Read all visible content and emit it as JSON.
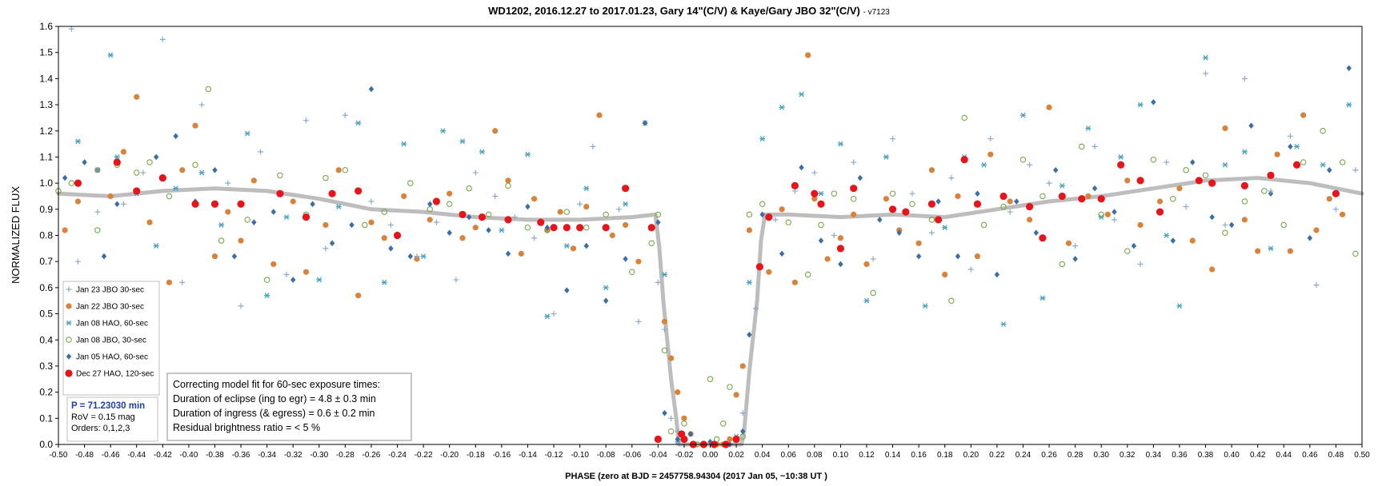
{
  "chart_data": {
    "type": "scatter",
    "title": "WD1202, 2016.12.27 to 2017.01.23, Gary 14\"(C/V) & Kaye/Gary JBO 32\"(C/V)",
    "title_suffix": "- v7123",
    "xlabel": "PHASE (zero  at  BJD = 2457758.94304 (2017 Jan 05, ~10:38 UT )",
    "ylabel": "NORMALIZED FLUX",
    "xlim": [
      -0.5,
      0.5
    ],
    "ylim": [
      0.0,
      1.6
    ],
    "x_ticks": [
      "-0.50",
      "-0.48",
      "-0.46",
      "-0.44",
      "-0.42",
      "-0.40",
      "-0.38",
      "-0.36",
      "-0.34",
      "-0.32",
      "-0.30",
      "-0.28",
      "-0.26",
      "-0.24",
      "-0.22",
      "-0.20",
      "-0.18",
      "-0.16",
      "-0.14",
      "-0.12",
      "-0.10",
      "-0.08",
      "-0.06",
      "-0.04",
      "-0.02",
      "0.00",
      "0.02",
      "0.04",
      "0.06",
      "0.08",
      "0.10",
      "0.12",
      "0.14",
      "0.16",
      "0.18",
      "0.20",
      "0.22",
      "0.24",
      "0.26",
      "0.28",
      "0.30",
      "0.32",
      "0.34",
      "0.36",
      "0.38",
      "0.40",
      "0.42",
      "0.44",
      "0.46",
      "0.48",
      "0.50"
    ],
    "y_ticks": [
      "0.0",
      "0.1",
      "0.2",
      "0.3",
      "0.4",
      "0.5",
      "0.6",
      "0.7",
      "0.8",
      "0.9",
      "1.0",
      "1.1",
      "1.2",
      "1.3",
      "1.4",
      "1.5",
      "1.6"
    ],
    "grid": false,
    "legend_position": "left",
    "legend": [
      {
        "label": "Jan 23 JBO 30-sec",
        "marker": "plus",
        "color": "#8ea9c8"
      },
      {
        "label": "Jan 22 JBO 30-sec",
        "marker": "circle",
        "color": "#d9823b"
      },
      {
        "label": "Jan 08 HAO, 60-sec",
        "marker": "asterisk",
        "color": "#4aa3bf"
      },
      {
        "label": "Jan 08 JBO, 30-sec",
        "marker": "open-circle",
        "color": "#77a84a"
      },
      {
        "label": "Jan 05 HAO, 60-sec",
        "marker": "diamond",
        "color": "#3a6ea5"
      },
      {
        "label": "Dec 27 HAO, 120-sec",
        "marker": "big-circle",
        "color": "#e8141b"
      }
    ],
    "series": [
      {
        "name": "Dec 27 HAO, 120-sec",
        "marker": "big-circle",
        "color": "#e8141b",
        "x": [
          -0.485,
          -0.455,
          -0.44,
          -0.42,
          -0.395,
          -0.38,
          -0.36,
          -0.33,
          -0.31,
          -0.29,
          -0.27,
          -0.24,
          -0.21,
          -0.19,
          -0.175,
          -0.155,
          -0.13,
          -0.12,
          -0.11,
          -0.1,
          -0.08,
          -0.065,
          -0.045,
          -0.04,
          -0.022,
          -0.02,
          -0.013,
          -0.005,
          0.003,
          0.012,
          0.02,
          0.038,
          0.045,
          0.065,
          0.08,
          0.085,
          0.1,
          0.11,
          0.14,
          0.15,
          0.17,
          0.175,
          0.195,
          0.205,
          0.225,
          0.245,
          0.255,
          0.27,
          0.285,
          0.3,
          0.315,
          0.33,
          0.345,
          0.375,
          0.385,
          0.41,
          0.43,
          0.45,
          0.48
        ],
        "y": [
          1.0,
          1.08,
          0.97,
          1.02,
          0.92,
          0.92,
          0.92,
          0.96,
          0.87,
          0.96,
          0.97,
          0.8,
          0.93,
          0.88,
          0.87,
          0.86,
          0.85,
          0.83,
          0.83,
          0.83,
          0.83,
          0.98,
          0.83,
          0.02,
          0.04,
          0.02,
          0.0,
          0.0,
          0.0,
          0.0,
          0.02,
          0.68,
          0.87,
          0.99,
          0.96,
          0.92,
          0.75,
          0.98,
          0.9,
          0.89,
          0.92,
          0.86,
          1.09,
          0.92,
          0.95,
          0.91,
          0.79,
          0.95,
          0.94,
          0.94,
          1.07,
          1.01,
          0.89,
          1.01,
          1.0,
          0.99,
          1.03,
          1.07,
          0.96
        ]
      },
      {
        "name": "Jan 22 JBO 30-sec",
        "marker": "circle",
        "color": "#d9823b",
        "x": [
          -0.495,
          -0.485,
          -0.47,
          -0.46,
          -0.45,
          -0.44,
          -0.43,
          -0.415,
          -0.405,
          -0.395,
          -0.38,
          -0.37,
          -0.36,
          -0.35,
          -0.335,
          -0.32,
          -0.31,
          -0.295,
          -0.285,
          -0.27,
          -0.26,
          -0.25,
          -0.235,
          -0.225,
          -0.215,
          -0.2,
          -0.19,
          -0.18,
          -0.165,
          -0.155,
          -0.145,
          -0.135,
          -0.125,
          -0.115,
          -0.105,
          -0.095,
          -0.085,
          -0.075,
          -0.065,
          -0.055,
          -0.045,
          -0.035,
          -0.03,
          -0.025,
          -0.02,
          -0.015,
          0.005,
          0.01,
          0.015,
          0.02,
          0.025,
          0.03,
          0.045,
          0.055,
          0.065,
          0.075,
          0.08,
          0.09,
          0.1,
          0.11,
          0.12,
          0.135,
          0.145,
          0.16,
          0.17,
          0.18,
          0.19,
          0.205,
          0.215,
          0.23,
          0.245,
          0.26,
          0.275,
          0.29,
          0.305,
          0.32,
          0.33,
          0.345,
          0.36,
          0.37,
          0.385,
          0.395,
          0.41,
          0.42,
          0.435,
          0.445,
          0.455,
          0.465,
          0.475,
          0.485
        ],
        "y": [
          0.82,
          0.93,
          1.05,
          0.95,
          1.12,
          1.33,
          0.85,
          0.62,
          1.05,
          1.22,
          0.72,
          0.89,
          0.78,
          1.01,
          0.69,
          0.93,
          0.66,
          0.84,
          1.05,
          0.57,
          0.85,
          0.79,
          0.95,
          0.71,
          0.86,
          0.96,
          0.79,
          0.83,
          1.2,
          1.01,
          0.73,
          0.94,
          0.82,
          0.89,
          0.75,
          0.91,
          1.26,
          0.8,
          0.84,
          0.7,
          0.83,
          0.47,
          0.33,
          0.2,
          0.1,
          0.04,
          0.0,
          0.0,
          0.02,
          0.19,
          0.3,
          0.82,
          0.66,
          0.9,
          0.62,
          1.49,
          0.94,
          0.71,
          0.79,
          0.88,
          0.69,
          0.94,
          0.82,
          0.77,
          1.05,
          0.65,
          0.95,
          0.72,
          1.11,
          0.93,
          0.86,
          1.29,
          0.77,
          0.95,
          0.88,
          1.01,
          0.84,
          0.93,
          0.98,
          0.78,
          0.67,
          1.21,
          0.86,
          0.74,
          1.11,
          0.74,
          1.26,
          0.82,
          0.94,
          0.88
        ]
      },
      {
        "name": "Jan 08 HAO, 60-sec",
        "marker": "asterisk",
        "color": "#4aa3bf",
        "x": [
          -0.485,
          -0.47,
          -0.46,
          -0.455,
          -0.44,
          -0.425,
          -0.41,
          -0.39,
          -0.375,
          -0.355,
          -0.34,
          -0.325,
          -0.3,
          -0.285,
          -0.27,
          -0.25,
          -0.235,
          -0.22,
          -0.205,
          -0.19,
          -0.175,
          -0.16,
          -0.14,
          -0.125,
          -0.11,
          -0.095,
          -0.08,
          -0.065,
          -0.05,
          -0.035,
          -0.025,
          0.02,
          0.03,
          0.04,
          0.055,
          0.07,
          0.085,
          0.1,
          0.12,
          0.135,
          0.15,
          0.165,
          0.18,
          0.195,
          0.21,
          0.225,
          0.24,
          0.255,
          0.27,
          0.29,
          0.3,
          0.315,
          0.33,
          0.35,
          0.36,
          0.38,
          0.395,
          0.41,
          0.43,
          0.45,
          0.47,
          0.49
        ],
        "y": [
          1.16,
          1.05,
          1.49,
          1.1,
          0.96,
          0.76,
          0.98,
          1.04,
          0.84,
          1.19,
          0.57,
          0.87,
          0.63,
          0.91,
          1.23,
          0.62,
          1.15,
          0.72,
          1.2,
          1.16,
          1.12,
          0.82,
          1.11,
          0.49,
          0.76,
          0.98,
          0.6,
          0.92,
          1.23,
          0.65,
          0.01,
          0.03,
          0.62,
          1.17,
          1.29,
          1.34,
          0.96,
          1.15,
          0.55,
          1.1,
          0.89,
          0.53,
          0.83,
          1.1,
          1.07,
          0.46,
          1.26,
          0.56,
          0.99,
          1.21,
          0.87,
          1.1,
          1.3,
          0.8,
          0.53,
          1.48,
          1.07,
          1.12,
          0.75,
          1.14,
          1.07,
          1.3
        ]
      },
      {
        "name": "Jan 08 JBO, 30-sec",
        "marker": "open-circle",
        "color": "#77a84a",
        "x": [
          -0.5,
          -0.49,
          -0.47,
          -0.455,
          -0.44,
          -0.43,
          -0.415,
          -0.395,
          -0.385,
          -0.375,
          -0.355,
          -0.34,
          -0.33,
          -0.31,
          -0.295,
          -0.28,
          -0.265,
          -0.25,
          -0.23,
          -0.215,
          -0.2,
          -0.185,
          -0.17,
          -0.155,
          -0.14,
          -0.125,
          -0.11,
          -0.095,
          -0.08,
          -0.06,
          -0.045,
          -0.04,
          -0.035,
          -0.03,
          -0.02,
          -0.01,
          0.0,
          0.005,
          0.01,
          0.015,
          0.025,
          0.03,
          0.04,
          0.06,
          0.075,
          0.085,
          0.095,
          0.11,
          0.125,
          0.14,
          0.155,
          0.17,
          0.185,
          0.195,
          0.21,
          0.225,
          0.24,
          0.255,
          0.27,
          0.285,
          0.3,
          0.32,
          0.34,
          0.355,
          0.365,
          0.38,
          0.395,
          0.41,
          0.425,
          0.44,
          0.455,
          0.47,
          0.485,
          0.495
        ],
        "y": [
          0.97,
          1.0,
          0.82,
          1.07,
          1.04,
          1.08,
          0.95,
          1.07,
          1.36,
          0.78,
          0.86,
          0.63,
          1.03,
          0.88,
          1.02,
          1.05,
          0.84,
          0.89,
          1.0,
          0.9,
          0.92,
          0.98,
          0.88,
          0.99,
          0.83,
          0.82,
          0.89,
          0.83,
          0.88,
          0.66,
          0.77,
          0.88,
          0.36,
          0.05,
          0.08,
          0.0,
          0.25,
          0.02,
          0.08,
          0.22,
          0.03,
          0.88,
          0.92,
          0.85,
          0.65,
          0.84,
          0.96,
          0.94,
          0.58,
          0.96,
          0.92,
          0.86,
          0.55,
          1.25,
          0.84,
          0.91,
          1.09,
          0.95,
          0.69,
          1.14,
          0.88,
          0.74,
          1.09,
          0.94,
          1.05,
          1.03,
          0.81,
          0.93,
          0.97,
          0.84,
          1.08,
          1.2,
          1.08,
          0.73
        ]
      },
      {
        "name": "Jan 05 HAO, 60-sec",
        "marker": "diamond",
        "color": "#3a6ea5",
        "x": [
          -0.495,
          -0.48,
          -0.465,
          -0.455,
          -0.44,
          -0.425,
          -0.41,
          -0.395,
          -0.38,
          -0.365,
          -0.35,
          -0.335,
          -0.32,
          -0.305,
          -0.29,
          -0.275,
          -0.26,
          -0.245,
          -0.23,
          -0.215,
          -0.2,
          -0.185,
          -0.17,
          -0.155,
          -0.14,
          -0.125,
          -0.11,
          -0.095,
          -0.08,
          -0.065,
          -0.05,
          -0.04,
          -0.035,
          -0.025,
          -0.015,
          0.0,
          0.015,
          0.025,
          0.03,
          0.04,
          0.055,
          0.07,
          0.085,
          0.1,
          0.115,
          0.13,
          0.145,
          0.16,
          0.175,
          0.19,
          0.205,
          0.22,
          0.235,
          0.25,
          0.265,
          0.28,
          0.295,
          0.31,
          0.325,
          0.34,
          0.355,
          0.37,
          0.385,
          0.4,
          0.415,
          0.43,
          0.445,
          0.46,
          0.475,
          0.49
        ],
        "y": [
          1.02,
          1.08,
          0.72,
          0.92,
          0.97,
          1.1,
          1.18,
          0.93,
          1.05,
          0.72,
          0.85,
          0.89,
          0.63,
          0.92,
          0.77,
          0.84,
          1.36,
          0.75,
          0.72,
          0.92,
          0.81,
          0.87,
          0.82,
          0.73,
          0.91,
          0.83,
          0.59,
          0.76,
          0.55,
          0.71,
          1.23,
          0.85,
          0.12,
          0.02,
          0.04,
          0.01,
          0.0,
          0.05,
          0.42,
          0.88,
          0.73,
          1.06,
          0.78,
          0.69,
          1.02,
          0.86,
          0.81,
          0.72,
          0.93,
          0.72,
          0.96,
          0.65,
          0.93,
          0.81,
          1.05,
          0.71,
          0.98,
          0.89,
          0.76,
          1.31,
          0.78,
          1.08,
          0.87,
          0.84,
          1.22,
          0.96,
          1.14,
          0.79,
          1.05,
          1.44
        ]
      },
      {
        "name": "Jan 23 JBO 30-sec",
        "marker": "plus",
        "color": "#8ea9c8",
        "x": [
          -0.49,
          -0.485,
          -0.47,
          -0.45,
          -0.435,
          -0.42,
          -0.405,
          -0.39,
          -0.37,
          -0.36,
          -0.345,
          -0.325,
          -0.31,
          -0.295,
          -0.28,
          -0.26,
          -0.245,
          -0.225,
          -0.21,
          -0.195,
          -0.18,
          -0.165,
          -0.15,
          -0.135,
          -0.12,
          -0.1,
          -0.09,
          -0.07,
          -0.055,
          -0.04,
          -0.035,
          -0.03,
          -0.025,
          0.025,
          0.035,
          0.05,
          0.065,
          0.08,
          0.095,
          0.11,
          0.125,
          0.14,
          0.155,
          0.17,
          0.185,
          0.2,
          0.215,
          0.23,
          0.245,
          0.26,
          0.28,
          0.295,
          0.31,
          0.33,
          0.35,
          0.365,
          0.38,
          0.395,
          0.41,
          0.43,
          0.445,
          0.465,
          0.48,
          0.495
        ],
        "y": [
          1.59,
          0.7,
          0.89,
          0.92,
          1.04,
          1.55,
          0.62,
          1.3,
          1.0,
          0.53,
          1.12,
          0.65,
          1.24,
          0.75,
          1.26,
          0.93,
          0.84,
          0.72,
          0.85,
          0.63,
          1.04,
          0.95,
          0.87,
          0.79,
          0.5,
          0.92,
          1.14,
          0.9,
          0.47,
          0.62,
          0.44,
          0.1,
          0.05,
          0.12,
          0.52,
          0.86,
          0.97,
          1.04,
          0.8,
          1.08,
          0.71,
          1.17,
          0.96,
          0.81,
          1.02,
          0.67,
          1.17,
          0.89,
          1.07,
          1.0,
          0.76,
          1.14,
          0.86,
          0.69,
          1.08,
          0.91,
          1.42,
          0.84,
          1.4,
          0.97,
          1.18,
          0.61,
          0.9,
          1.05
        ]
      }
    ],
    "model_curve": {
      "name": "model fit",
      "color": "#bdbdbd",
      "x": [
        -0.5,
        -0.46,
        -0.42,
        -0.38,
        -0.34,
        -0.3,
        -0.26,
        -0.22,
        -0.18,
        -0.14,
        -0.1,
        -0.06,
        -0.042,
        -0.039,
        -0.036,
        -0.03,
        -0.026,
        -0.024,
        0.024,
        0.026,
        0.03,
        0.036,
        0.039,
        0.042,
        0.06,
        0.1,
        0.14,
        0.18,
        0.22,
        0.26,
        0.3,
        0.34,
        0.38,
        0.42,
        0.46,
        0.5
      ],
      "y": [
        0.96,
        0.95,
        0.97,
        0.98,
        0.97,
        0.94,
        0.9,
        0.89,
        0.87,
        0.86,
        0.86,
        0.87,
        0.88,
        0.75,
        0.55,
        0.25,
        0.1,
        0.0,
        0.0,
        0.05,
        0.28,
        0.55,
        0.78,
        0.88,
        0.88,
        0.87,
        0.88,
        0.87,
        0.9,
        0.93,
        0.95,
        0.98,
        1.01,
        1.02,
        1.0,
        0.96
      ]
    }
  },
  "notes": {
    "fit": [
      "Correcting model fit for 60-sec exposure times:",
      "Duration of eclipse  (ing to egr) = 4.8 ± 0.3 min",
      "Duration of ingress (& egress)   = 0.6 ± 0.2 min",
      "Residual brightness ratio = < 5 %"
    ],
    "period": "P = 71.23030 min",
    "rov": "RoV = 0.15 mag",
    "orders": "Orders: 0,1,2,3"
  }
}
